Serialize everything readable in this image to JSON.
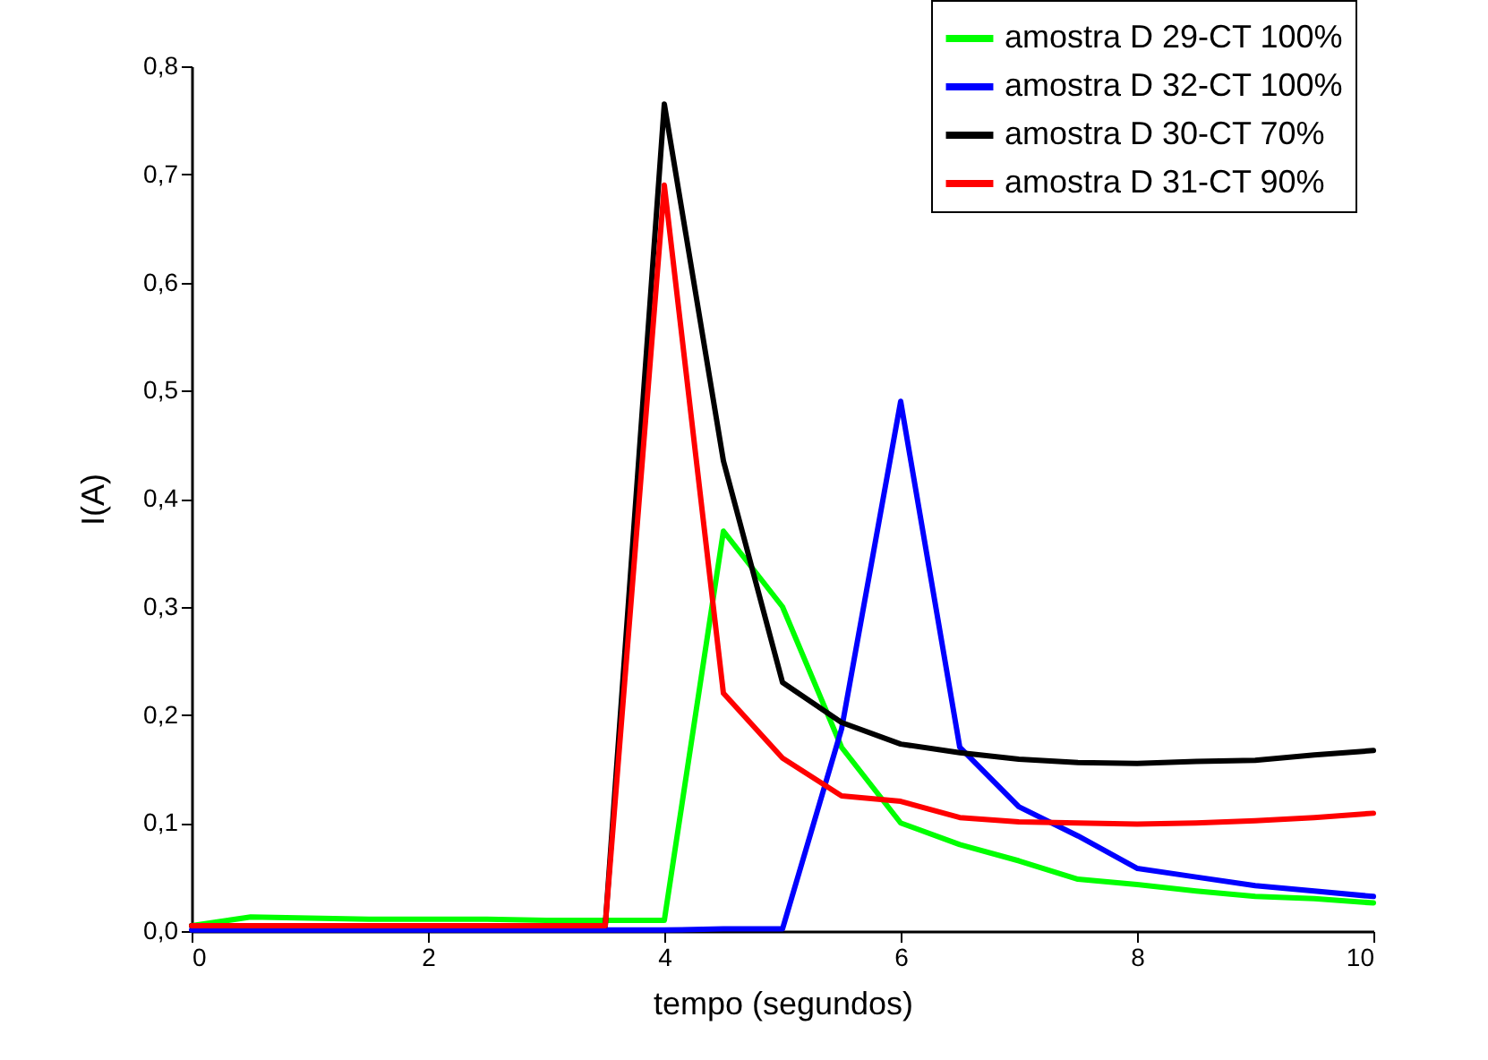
{
  "chart_data": {
    "type": "line",
    "xlabel": "tempo (segundos)",
    "ylabel": "I(A)",
    "x": [
      0,
      0.5,
      1,
      1.5,
      2,
      2.5,
      3,
      3.5,
      4,
      4.5,
      5,
      5.5,
      6,
      6.5,
      7,
      7.5,
      8,
      8.5,
      9,
      9.5,
      10
    ],
    "series": [
      {
        "name": "amostra D 29-CT 100%",
        "color": "#00ff00",
        "values": [
          0.005,
          0.013,
          0.012,
          0.011,
          0.011,
          0.011,
          0.01,
          0.01,
          0.01,
          0.37,
          0.3,
          0.17,
          0.1,
          0.08,
          0.065,
          0.048,
          0.043,
          0.037,
          0.032,
          0.03,
          0.026
        ]
      },
      {
        "name": "amostra D 32-CT 100%",
        "color": "#0000ff",
        "values": [
          0.001,
          0.001,
          0.001,
          0.001,
          0.001,
          0.001,
          0.001,
          0.001,
          0.001,
          0.002,
          0.002,
          0.187,
          0.49,
          0.17,
          0.115,
          0.088,
          0.058,
          0.05,
          0.042,
          0.037,
          0.032
        ]
      },
      {
        "name": "amostra D 30-CT 70%",
        "color": "#000000",
        "values": [
          0.005,
          0.005,
          0.005,
          0.005,
          0.005,
          0.005,
          0.005,
          0.005,
          0.765,
          0.435,
          0.23,
          0.193,
          0.173,
          0.165,
          0.159,
          0.156,
          0.155,
          0.157,
          0.158,
          0.163,
          0.167
        ]
      },
      {
        "name": "amostra D 31-CT 90%",
        "color": "#ff0000",
        "values": [
          0.005,
          0.005,
          0.005,
          0.005,
          0.005,
          0.005,
          0.005,
          0.005,
          0.69,
          0.22,
          0.16,
          0.125,
          0.12,
          0.105,
          0.101,
          0.1,
          0.099,
          0.1,
          0.102,
          0.105,
          0.109
        ]
      }
    ],
    "xlim": [
      0,
      10
    ],
    "xticks": [
      0,
      2,
      4,
      6,
      8,
      10
    ],
    "ylim": [
      0,
      0.8
    ],
    "yticks": [
      {
        "value": 0,
        "label": "0,0"
      },
      {
        "value": 0.1,
        "label": "0,1"
      },
      {
        "value": 0.2,
        "label": "0,2"
      },
      {
        "value": 0.3,
        "label": "0,3"
      },
      {
        "value": 0.4,
        "label": "0,4"
      },
      {
        "value": 0.5,
        "label": "0,5"
      },
      {
        "value": 0.6,
        "label": "0,6"
      },
      {
        "value": 0.7,
        "label": "0,7"
      },
      {
        "value": 0.8,
        "label": "0,8"
      }
    ],
    "grid": false,
    "legend": "top right",
    "marker": "none",
    "line_style": "solid"
  }
}
